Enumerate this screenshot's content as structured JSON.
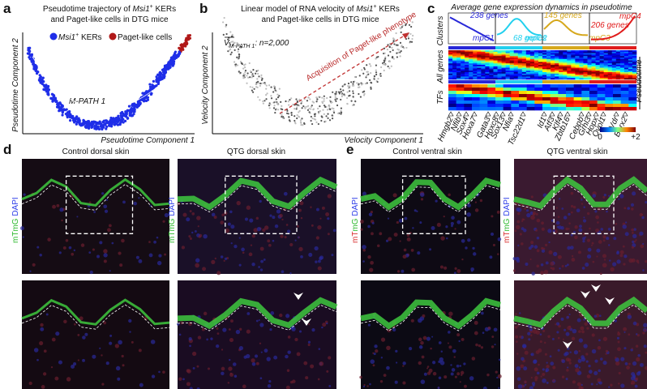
{
  "panels": {
    "a": {
      "label": "a",
      "title": {
        "pre": "Pseudotime trajectory of ",
        "gene": "Msi1",
        "sup": "+",
        "post": " KERs",
        "line2": "and Paget-like cells in DTG mice"
      },
      "legend": [
        {
          "gene": "Msi1",
          "sup": "+",
          "text": " KERs",
          "color": "#1f2ee8"
        },
        {
          "text": "Paget-like cells",
          "color": "#b01818"
        }
      ],
      "annotation": "M-PATH 1",
      "x_axis": "Pseudotime Component 1",
      "y_axis": "Pseudotime Component 2"
    },
    "b": {
      "label": "b",
      "title": {
        "pre": "Linear model of RNA velocity of ",
        "gene": "Msi1",
        "sup": "+",
        "post": " KERs",
        "line2": "and Paget-like cells in DTG mice"
      },
      "vector": {
        "symbol": "V",
        "subscript": "M-PATH 1",
        "text": ": n=2,000"
      },
      "annotation": "Acquisition of Paget-like phenotype",
      "x_axis": "Velocity Component 1",
      "y_axis": "Velocity Component 2"
    },
    "c": {
      "label": "c",
      "title": "Average gene expression dynamics in pseudotime",
      "row_labels": [
        "Clusters",
        "All genes",
        "TFs"
      ],
      "pseudotime": "Pseudotime",
      "clusters": [
        {
          "name": "mpC1",
          "genes": "238 genes",
          "color": "#2828d8"
        },
        {
          "name": "mpC2",
          "genes": "68 genes",
          "color": "#22d0ee"
        },
        {
          "name": "mpC3",
          "genes": "145 genes",
          "color": "#d6a81c"
        },
        {
          "name": "mpC4",
          "genes": "206 genes",
          "color": "#e01c1c"
        }
      ],
      "tf_genes": [
        "Hmgb2",
        "Nfib",
        "Sox4",
        "Hoxa7",
        "Gata3",
        "Hoxc8",
        "Sox13",
        "Nfia",
        "Tsc22d1",
        "Id1",
        "Atf3",
        "Klf4",
        "Zbtb16",
        "Cebpb",
        "Grhl3",
        "Hopx",
        "Ovol1",
        "Vdr",
        "Barx2"
      ],
      "colorbar": {
        "min": "0",
        "max": "+2"
      }
    },
    "d": {
      "label": "d",
      "images": [
        "Control dorsal skin",
        "QTG dorsal skin"
      ],
      "stain": {
        "green": "mTmG",
        "blue": "DAPI"
      }
    },
    "e": {
      "label": "e",
      "images": [
        "Control ventral skin",
        "QTG ventral skin"
      ],
      "stain": {
        "red": "mT",
        "green": "mG",
        "blue": "DAPI"
      }
    }
  }
}
